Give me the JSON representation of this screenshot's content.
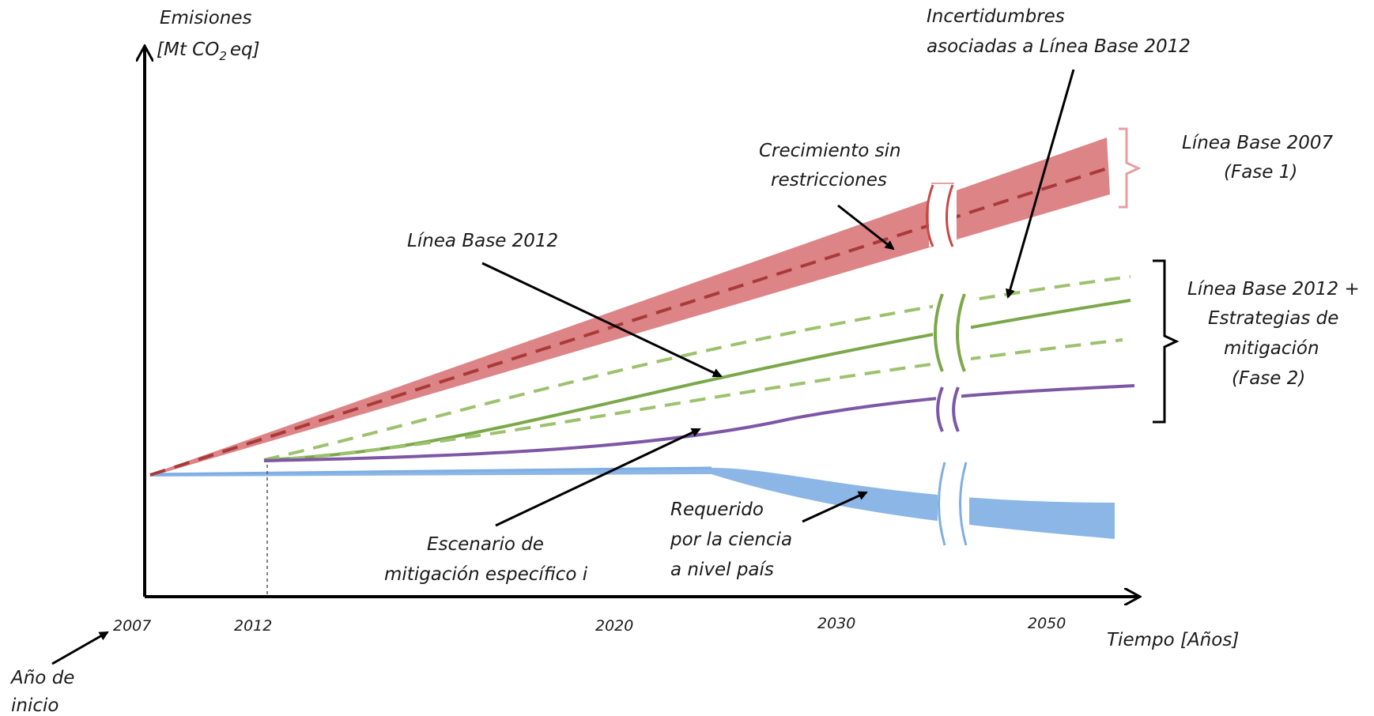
{
  "axes": {
    "y_label_line1": "Emisiones",
    "y_label_pre": "[Mt CO",
    "y_label_sub": "2",
    "y_label_post": "eq]",
    "x_label": "Tiempo [Años]",
    "start_label_line1": "Año de",
    "start_label_line2": "inicio"
  },
  "ticks": [
    "2007",
    "2012",
    "2020",
    "2030",
    "2050"
  ],
  "annotations": {
    "crecimiento_line1": "Crecimiento sin",
    "crecimiento_line2": "restricciones",
    "incertidumbres_line1": "Incertidumbres",
    "incertidumbres_line2": "asociadas a Línea Base 2012",
    "linea_base_2012": "Línea Base 2012",
    "escenario_line1": "Escenario de",
    "escenario_line2": "mitigación específico i",
    "requerido_line1": "Requerido",
    "requerido_line2": "por la ciencia",
    "requerido_line3": "a nivel país"
  },
  "legend": {
    "lb2007_line1": "Línea Base 2007",
    "lb2007_line2": "(Fase 1)",
    "lb2012_line1": "Línea Base 2012 +",
    "lb2012_line2": "Estrategias de",
    "lb2012_line3": "mitigación",
    "lb2012_line4": "(Fase 2)"
  },
  "colors": {
    "baseline_2007": "#d9777a",
    "baseline_2007_dash": "#a83a3a",
    "baseline_2012": "#7ba84a",
    "baseline_2012_dash": "#9cc26e",
    "mitigation": "#7d57a5",
    "required": "#7eaee3",
    "brace_2007": "#e4a0a3"
  }
}
